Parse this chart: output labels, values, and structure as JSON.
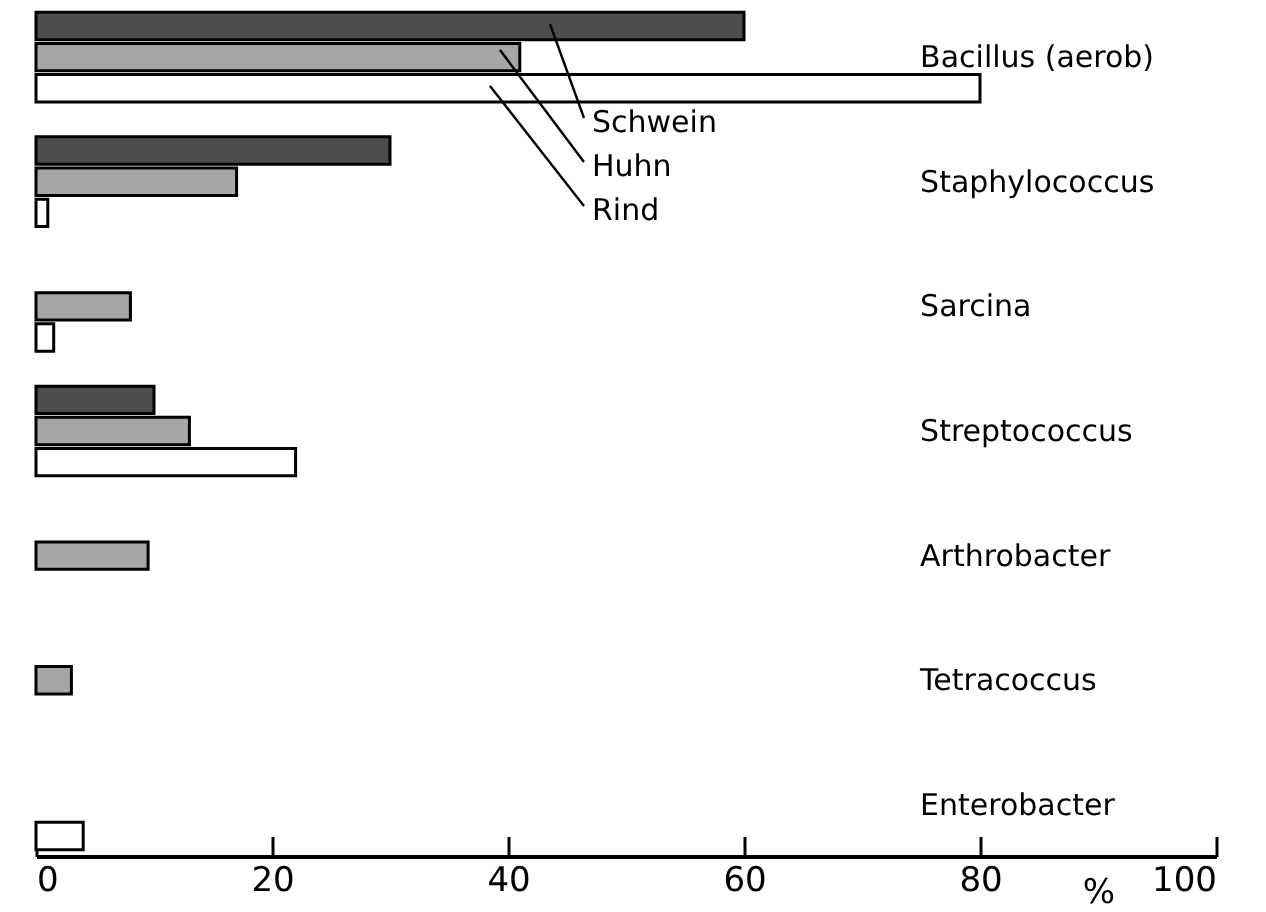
{
  "chart_data": {
    "type": "bar",
    "orientation": "horizontal",
    "xlabel": "%",
    "categories": [
      "Bacillus (aerob)",
      "Staphylococcus",
      "Sarcina",
      "Streptococcus",
      "Arthrobacter",
      "Tetracoccus",
      "Enterobacter"
    ],
    "series": [
      {
        "name": "Schwein",
        "color": "#4d4d4d",
        "values": [
          60,
          30,
          null,
          10,
          null,
          null,
          null
        ]
      },
      {
        "name": "Huhn",
        "color": "#a6a6a6",
        "values": [
          41,
          17,
          8,
          13,
          9.5,
          3,
          null
        ]
      },
      {
        "name": "Rind",
        "color": "#ffffff",
        "values": [
          80,
          1,
          1.5,
          22,
          null,
          null,
          4
        ]
      }
    ],
    "xlim": [
      0,
      100
    ],
    "xticks": [
      0,
      20,
      40,
      60,
      80,
      100
    ]
  }
}
